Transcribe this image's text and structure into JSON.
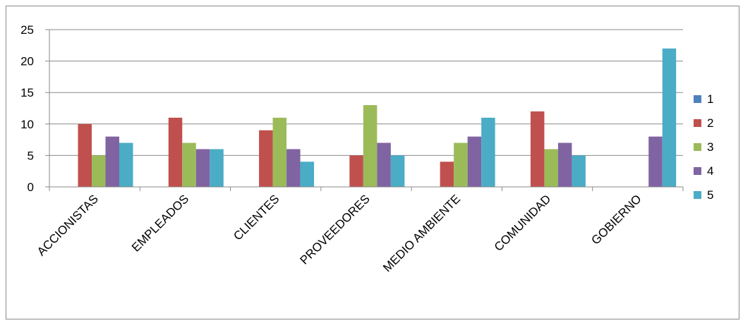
{
  "chart_data": {
    "type": "bar",
    "title": "",
    "xlabel": "",
    "ylabel": "",
    "ylim": [
      0,
      25
    ],
    "yticks": [
      0,
      5,
      10,
      15,
      20,
      25
    ],
    "grid": true,
    "legend_position": "right",
    "categories": [
      "ACCIONISTAS",
      "EMPLEADOS",
      "CLIENTES",
      "PROVEEDORES",
      "MEDIO AMBIENTE",
      "COMUNIDAD",
      "GOBIERNO"
    ],
    "series": [
      {
        "name": "1",
        "color": "#4f81bd",
        "values": [
          0,
          0,
          0,
          0,
          0,
          0,
          0
        ]
      },
      {
        "name": "2",
        "color": "#c0504d",
        "values": [
          10,
          11,
          9,
          5,
          4,
          12,
          0
        ]
      },
      {
        "name": "3",
        "color": "#9bbb59",
        "values": [
          5,
          7,
          11,
          13,
          7,
          6,
          0
        ]
      },
      {
        "name": "4",
        "color": "#8064a2",
        "values": [
          8,
          6,
          6,
          7,
          8,
          7,
          8
        ]
      },
      {
        "name": "5",
        "color": "#4bacc6",
        "values": [
          7,
          6,
          4,
          5,
          11,
          5,
          22
        ]
      }
    ]
  }
}
